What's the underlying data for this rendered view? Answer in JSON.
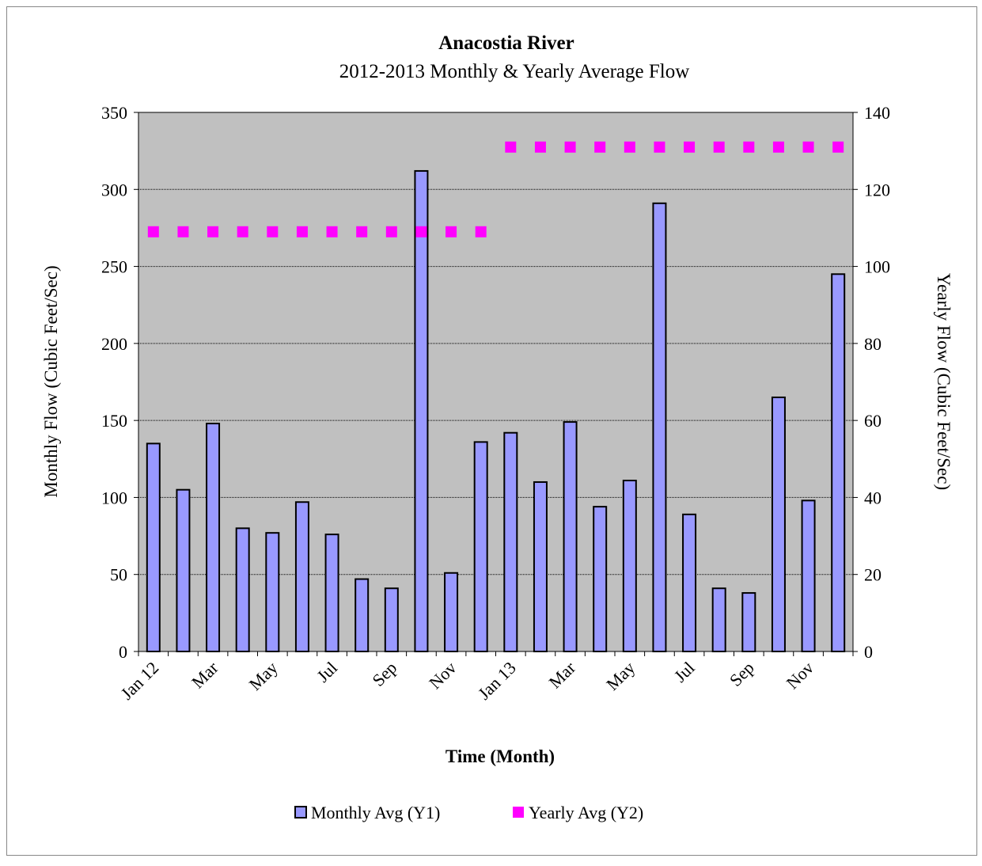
{
  "chart_data": {
    "type": "bar",
    "title": "Anacostia River",
    "subtitle": "2012-2013 Monthly & Yearly Average Flow",
    "x_label": "Time (Month)",
    "y_label": "Monthly Flow (Cubic Feet/Sec)",
    "y2_label": "Yearly Flow (Cubic Feet/Sec)",
    "categories": [
      "Jan 12",
      null,
      "Mar",
      null,
      "May",
      null,
      "Jul",
      null,
      "Sep",
      null,
      "Nov",
      null,
      "Jan 13",
      null,
      "Mar",
      null,
      "May",
      null,
      "Jul",
      null,
      "Sep",
      null,
      "Nov",
      null
    ],
    "series": [
      {
        "name": "Monthly Avg (Y1)",
        "type": "bar",
        "axis": "y",
        "color": "#9999ff",
        "values": [
          135,
          105,
          148,
          80,
          77,
          97,
          76,
          47,
          41,
          312,
          51,
          136,
          142,
          110,
          149,
          94,
          111,
          291,
          89,
          41,
          38,
          165,
          98,
          245
        ]
      },
      {
        "name": "Yearly Avg (Y2)",
        "type": "scatter",
        "axis": "y2",
        "color": "#ff00ff",
        "values": [
          109,
          109,
          109,
          109,
          109,
          109,
          109,
          109,
          109,
          109,
          109,
          109,
          131,
          131,
          131,
          131,
          131,
          131,
          131,
          131,
          131,
          131,
          131,
          131
        ]
      }
    ],
    "ylim": [
      0,
      350
    ],
    "yticks": [
      0,
      50,
      100,
      150,
      200,
      250,
      300,
      350
    ],
    "y2lim": [
      0,
      140
    ],
    "y2ticks": [
      0,
      20,
      40,
      60,
      80,
      100,
      120,
      140
    ],
    "grid": true,
    "legend": "bottom"
  }
}
